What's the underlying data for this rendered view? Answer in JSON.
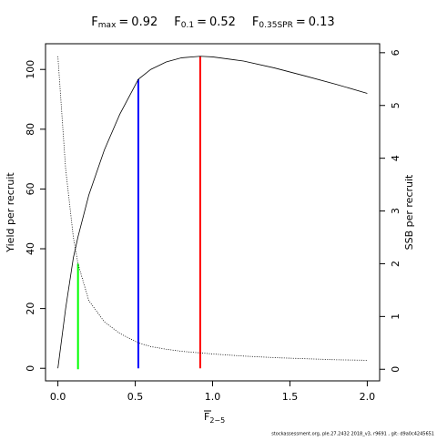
{
  "chart_data": {
    "type": "line",
    "title": [
      {
        "symbol": "F",
        "subscript": "max",
        "relation": "=",
        "value": 0.92
      },
      {
        "symbol": "F",
        "subscript": "0.1",
        "relation": "=",
        "value": 0.52
      },
      {
        "symbol": "F",
        "subscript": "0.35SPR",
        "relation": "=",
        "value": 0.13
      }
    ],
    "x_label": {
      "symbol": "F",
      "subscript": "2−5"
    },
    "y_label": "Yield per recruit",
    "y2_label": "SSB per recruit",
    "footer": "stockassessment.org, ple.27.2432  2018_v3, r9691 , git: d9a0c4245651",
    "x": [
      0,
      0.05,
      0.1,
      0.13,
      0.2,
      0.3,
      0.4,
      0.52,
      0.6,
      0.7,
      0.8,
      0.92,
      1.0,
      1.2,
      1.4,
      1.6,
      1.8,
      2.0
    ],
    "series": [
      {
        "name": "Yield per recruit",
        "color": "#000000",
        "dash": "solid",
        "values": [
          0,
          20,
          37,
          44,
          58,
          73,
          85,
          96.7,
          100,
          102.5,
          103.9,
          104.4,
          104.2,
          102.8,
          100.5,
          97.8,
          95,
          92
        ]
      },
      {
        "name": "SSB per recruit",
        "color": "#000000",
        "dash": "dotted",
        "axis": "y2",
        "values": [
          5.93,
          3.8,
          2.5,
          2.0,
          1.3,
          0.9,
          0.68,
          0.5,
          0.43,
          0.38,
          0.34,
          0.31,
          0.29,
          0.25,
          0.22,
          0.2,
          0.18,
          0.17
        ]
      }
    ],
    "reference_lines": [
      {
        "x": 0.92,
        "y": 104.4,
        "axis": "y",
        "color": "#ff0000"
      },
      {
        "x": 0.52,
        "y": 96.7,
        "axis": "y",
        "color": "#0000ff"
      },
      {
        "x": 0.13,
        "y": 2.0,
        "axis": "y2",
        "color": "#00ff00"
      }
    ],
    "xlim": [
      -0.08,
      2.08
    ],
    "xticks": [
      {
        "value": 0,
        "label": "0.0"
      },
      {
        "value": 0.5,
        "label": "0.5"
      },
      {
        "value": 1,
        "label": "1.0"
      },
      {
        "value": 1.5,
        "label": "1.5"
      },
      {
        "value": 2,
        "label": "2.0"
      }
    ],
    "ylim": [
      -4.2,
      108.6
    ],
    "yticks": [
      0,
      20,
      40,
      60,
      80,
      100
    ],
    "y2lim": [
      -0.22,
      6.17
    ],
    "y2ticks": [
      0,
      1,
      2,
      3,
      4,
      5,
      6
    ]
  }
}
